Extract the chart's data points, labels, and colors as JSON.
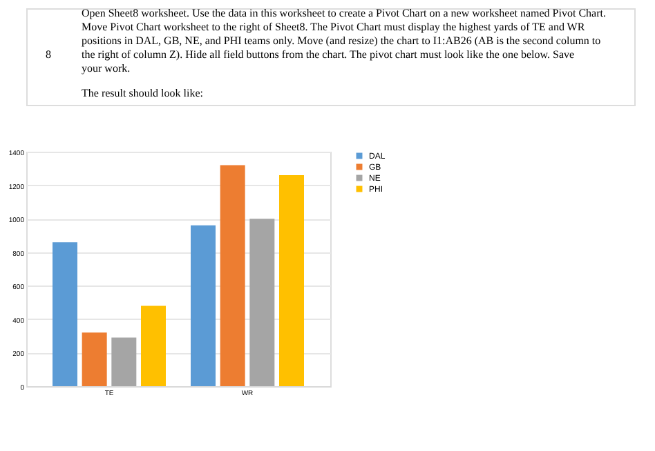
{
  "chart_data": {
    "type": "bar",
    "annotations": [
      "8",
      "Open Sheet8 worksheet. Use the data in this worksheet to create a Pivot Chart on a new worksheet named Pivot Chart. Move Pivot Chart worksheet to the right of Sheet8. The Pivot Chart must display the highest yards of TE and WR positions in DAL, GB, NE, and PHI teams only. Move (and resize) the chart to I1:AB26 (AB is the second column to the right of column Z). Hide all field buttons from the chart. The pivot chart must look like the one below. Save your work.",
      "The result should look like:"
    ],
    "categories": [
      "TE",
      "WR"
    ],
    "series": [
      {
        "name": "DAL",
        "color": "#5b9bd5",
        "values": [
          860,
          960
        ]
      },
      {
        "name": "GB",
        "color": "#ed7d31",
        "values": [
          320,
          1320
        ]
      },
      {
        "name": "NE",
        "color": "#a5a5a5",
        "values": [
          290,
          1000
        ]
      },
      {
        "name": "PHI",
        "color": "#ffc000",
        "values": [
          480,
          1260
        ]
      }
    ],
    "ylim": [
      0,
      1400
    ],
    "yticks": [
      0,
      200,
      400,
      600,
      800,
      1000,
      1200,
      1400
    ],
    "grid": "y",
    "legend": "right"
  }
}
